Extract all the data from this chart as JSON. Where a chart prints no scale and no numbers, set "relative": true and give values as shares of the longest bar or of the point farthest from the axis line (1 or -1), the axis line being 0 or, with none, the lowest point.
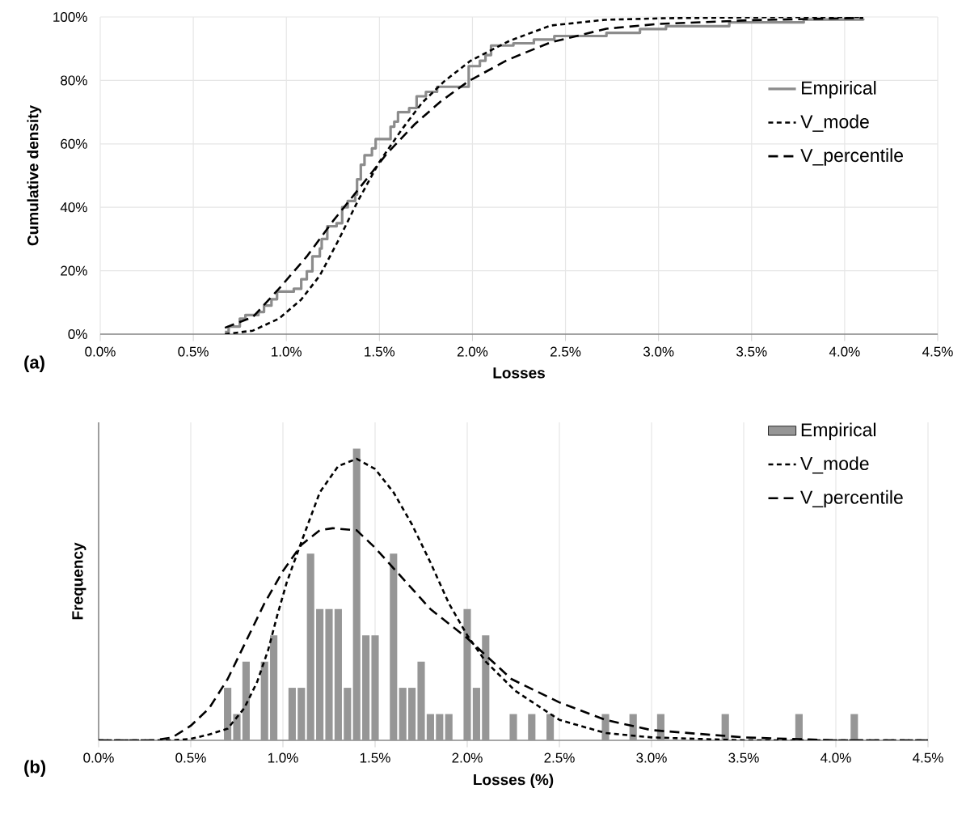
{
  "chart_data": [
    {
      "type": "line",
      "xlabel": "Losses",
      "ylabel": "Cumulative density",
      "annotations": [
        "(a)"
      ],
      "grid": true,
      "legend": "right",
      "xlim": [
        0,
        4.5
      ],
      "ylim": [
        0,
        100
      ],
      "xticks": [
        {
          "value": 0,
          "label": "0.0%"
        },
        {
          "value": 0.5,
          "label": "0.5%"
        },
        {
          "value": 1,
          "label": "1.0%"
        },
        {
          "value": 1.5,
          "label": "1.5%"
        },
        {
          "value": 2,
          "label": "2.0%"
        },
        {
          "value": 2.5,
          "label": "2.5%"
        },
        {
          "value": 3,
          "label": "3.0%"
        },
        {
          "value": 3.5,
          "label": "3.5%"
        },
        {
          "value": 4,
          "label": "4.0%"
        },
        {
          "value": 4.5,
          "label": "4.5%"
        }
      ],
      "yticks": [
        {
          "value": 0,
          "label": "0%"
        },
        {
          "value": 20,
          "label": "20%"
        },
        {
          "value": 40,
          "label": "40%"
        },
        {
          "value": 60,
          "label": "60%"
        },
        {
          "value": 80,
          "label": "80%"
        },
        {
          "value": 100,
          "label": "100%"
        }
      ],
      "series": [
        {
          "name": "Empirical",
          "type": "step",
          "color": "#8c8c8c",
          "line_style": "solid",
          "x": [
            0.67,
            0.69,
            0.75,
            0.78,
            0.85,
            0.88,
            0.92,
            0.95,
            1.04,
            1.08,
            1.11,
            1.14,
            1.18,
            1.19,
            1.22,
            1.27,
            1.3,
            1.33,
            1.37,
            1.38,
            1.4,
            1.42,
            1.46,
            1.48,
            1.56,
            1.58,
            1.6,
            1.66,
            1.7,
            1.75,
            1.81,
            1.98,
            2.04,
            2.07,
            2.1,
            2.22,
            2.33,
            2.44,
            2.72,
            2.9,
            3.04,
            3.38,
            3.78,
            4.1
          ],
          "values": [
            0.7,
            2.4,
            4.9,
            6,
            7,
            9,
            11,
            13.4,
            14.3,
            17.3,
            19.8,
            24.5,
            27,
            30,
            34,
            35,
            40,
            42,
            44,
            48.8,
            53.4,
            56.4,
            58.6,
            61.5,
            65.4,
            67,
            70,
            71.3,
            75,
            76.4,
            78,
            84.5,
            86.2,
            88,
            91,
            91.7,
            92.9,
            94,
            95,
            96.2,
            97.1,
            98.3,
            99.2,
            99.5
          ]
        },
        {
          "name": "V_mode",
          "color": "#000000",
          "line_style": "dotted",
          "x": [
            0.67,
            0.82,
            0.96,
            1.08,
            1.18,
            1.28,
            1.38,
            1.5,
            1.62,
            1.73,
            1.85,
            1.99,
            2.2,
            2.42,
            2.71,
            3.03,
            3.5,
            4.1
          ],
          "values": [
            0,
            1.1,
            4.9,
            10.9,
            18.5,
            29.6,
            41.5,
            54.3,
            64.5,
            73,
            79.8,
            86.2,
            92.5,
            97.3,
            99.1,
            99.6,
            99.9,
            100
          ]
        },
        {
          "name": "V_percentile",
          "color": "#000000",
          "line_style": "dashed",
          "x": [
            0.67,
            0.82,
            0.96,
            1.11,
            1.25,
            1.4,
            1.54,
            1.69,
            1.83,
            1.98,
            2.19,
            2.42,
            2.72,
            3.0,
            3.5,
            4.1
          ],
          "values": [
            2,
            5.4,
            14.3,
            24.5,
            35.6,
            46.6,
            56.9,
            66.2,
            73.4,
            79.8,
            86.5,
            92,
            96.3,
            97.8,
            99,
            99.7
          ]
        }
      ]
    },
    {
      "type": "bar",
      "xlabel": "Losses (%)",
      "ylabel": "Frequency",
      "annotations": [
        "(b)"
      ],
      "grid": "x",
      "legend": "top right",
      "relative": true,
      "xlim": [
        0,
        4.5
      ],
      "xticks": [
        {
          "value": 0,
          "label": "0.0%"
        },
        {
          "value": 0.5,
          "label": "0.5%"
        },
        {
          "value": 1,
          "label": "1.0%"
        },
        {
          "value": 1.5,
          "label": "1.5%"
        },
        {
          "value": 2,
          "label": "2.0%"
        },
        {
          "value": 2.5,
          "label": "2.5%"
        },
        {
          "value": 3,
          "label": "3.0%"
        },
        {
          "value": 3.5,
          "label": "3.5%"
        },
        {
          "value": 4,
          "label": "4.0%"
        },
        {
          "value": 4.5,
          "label": "4.5%"
        }
      ],
      "series": [
        {
          "name": "Empirical",
          "color": "#969696",
          "x": [
            0.7,
            0.75,
            0.8,
            0.9,
            0.95,
            1.05,
            1.1,
            1.15,
            1.2,
            1.25,
            1.3,
            1.35,
            1.4,
            1.45,
            1.5,
            1.6,
            1.65,
            1.7,
            1.75,
            1.8,
            1.85,
            1.9,
            2.0,
            2.05,
            2.1,
            2.25,
            2.35,
            2.45,
            2.75,
            2.9,
            3.05,
            3.4,
            3.8,
            4.1
          ],
          "values": [
            0.18,
            0.09,
            0.27,
            0.27,
            0.36,
            0.18,
            0.18,
            0.64,
            0.45,
            0.45,
            0.45,
            0.18,
            1,
            0.36,
            0.36,
            0.64,
            0.18,
            0.18,
            0.27,
            0.09,
            0.09,
            0.09,
            0.45,
            0.18,
            0.36,
            0.09,
            0.09,
            0.09,
            0.09,
            0.09,
            0.09,
            0.09,
            0.09,
            0.09
          ]
        },
        {
          "name": "V_mode",
          "type": "line",
          "color": "#000000",
          "line_style": "dotted",
          "x": [
            0,
            0.4,
            0.5,
            0.6,
            0.7,
            0.79,
            0.86,
            0.92,
            0.97,
            1.02,
            1.1,
            1.2,
            1.3,
            1.4,
            1.5,
            1.6,
            1.7,
            1.8,
            1.9,
            2.0,
            2.1,
            2.26,
            2.5,
            2.75,
            3.0,
            3.5,
            4.5
          ],
          "values": [
            0,
            0,
            0.005,
            0.02,
            0.04,
            0.11,
            0.2,
            0.31,
            0.43,
            0.54,
            0.68,
            0.85,
            0.94,
            0.965,
            0.93,
            0.85,
            0.74,
            0.61,
            0.47,
            0.36,
            0.27,
            0.17,
            0.07,
            0.025,
            0.01,
            0,
            0
          ]
        },
        {
          "name": "V_percentile",
          "type": "line",
          "color": "#000000",
          "line_style": "dashed",
          "x": [
            0,
            0.3,
            0.4,
            0.5,
            0.6,
            0.7,
            0.8,
            0.9,
            1.0,
            1.1,
            1.2,
            1.27,
            1.4,
            1.5,
            1.6,
            1.8,
            2.0,
            2.24,
            2.5,
            2.75,
            3.0,
            3.5,
            4.0,
            4.5
          ],
          "values": [
            0,
            0,
            0.01,
            0.05,
            0.11,
            0.21,
            0.34,
            0.47,
            0.58,
            0.67,
            0.72,
            0.727,
            0.72,
            0.66,
            0.59,
            0.45,
            0.35,
            0.21,
            0.13,
            0.07,
            0.035,
            0.01,
            0,
            0
          ]
        }
      ]
    }
  ]
}
